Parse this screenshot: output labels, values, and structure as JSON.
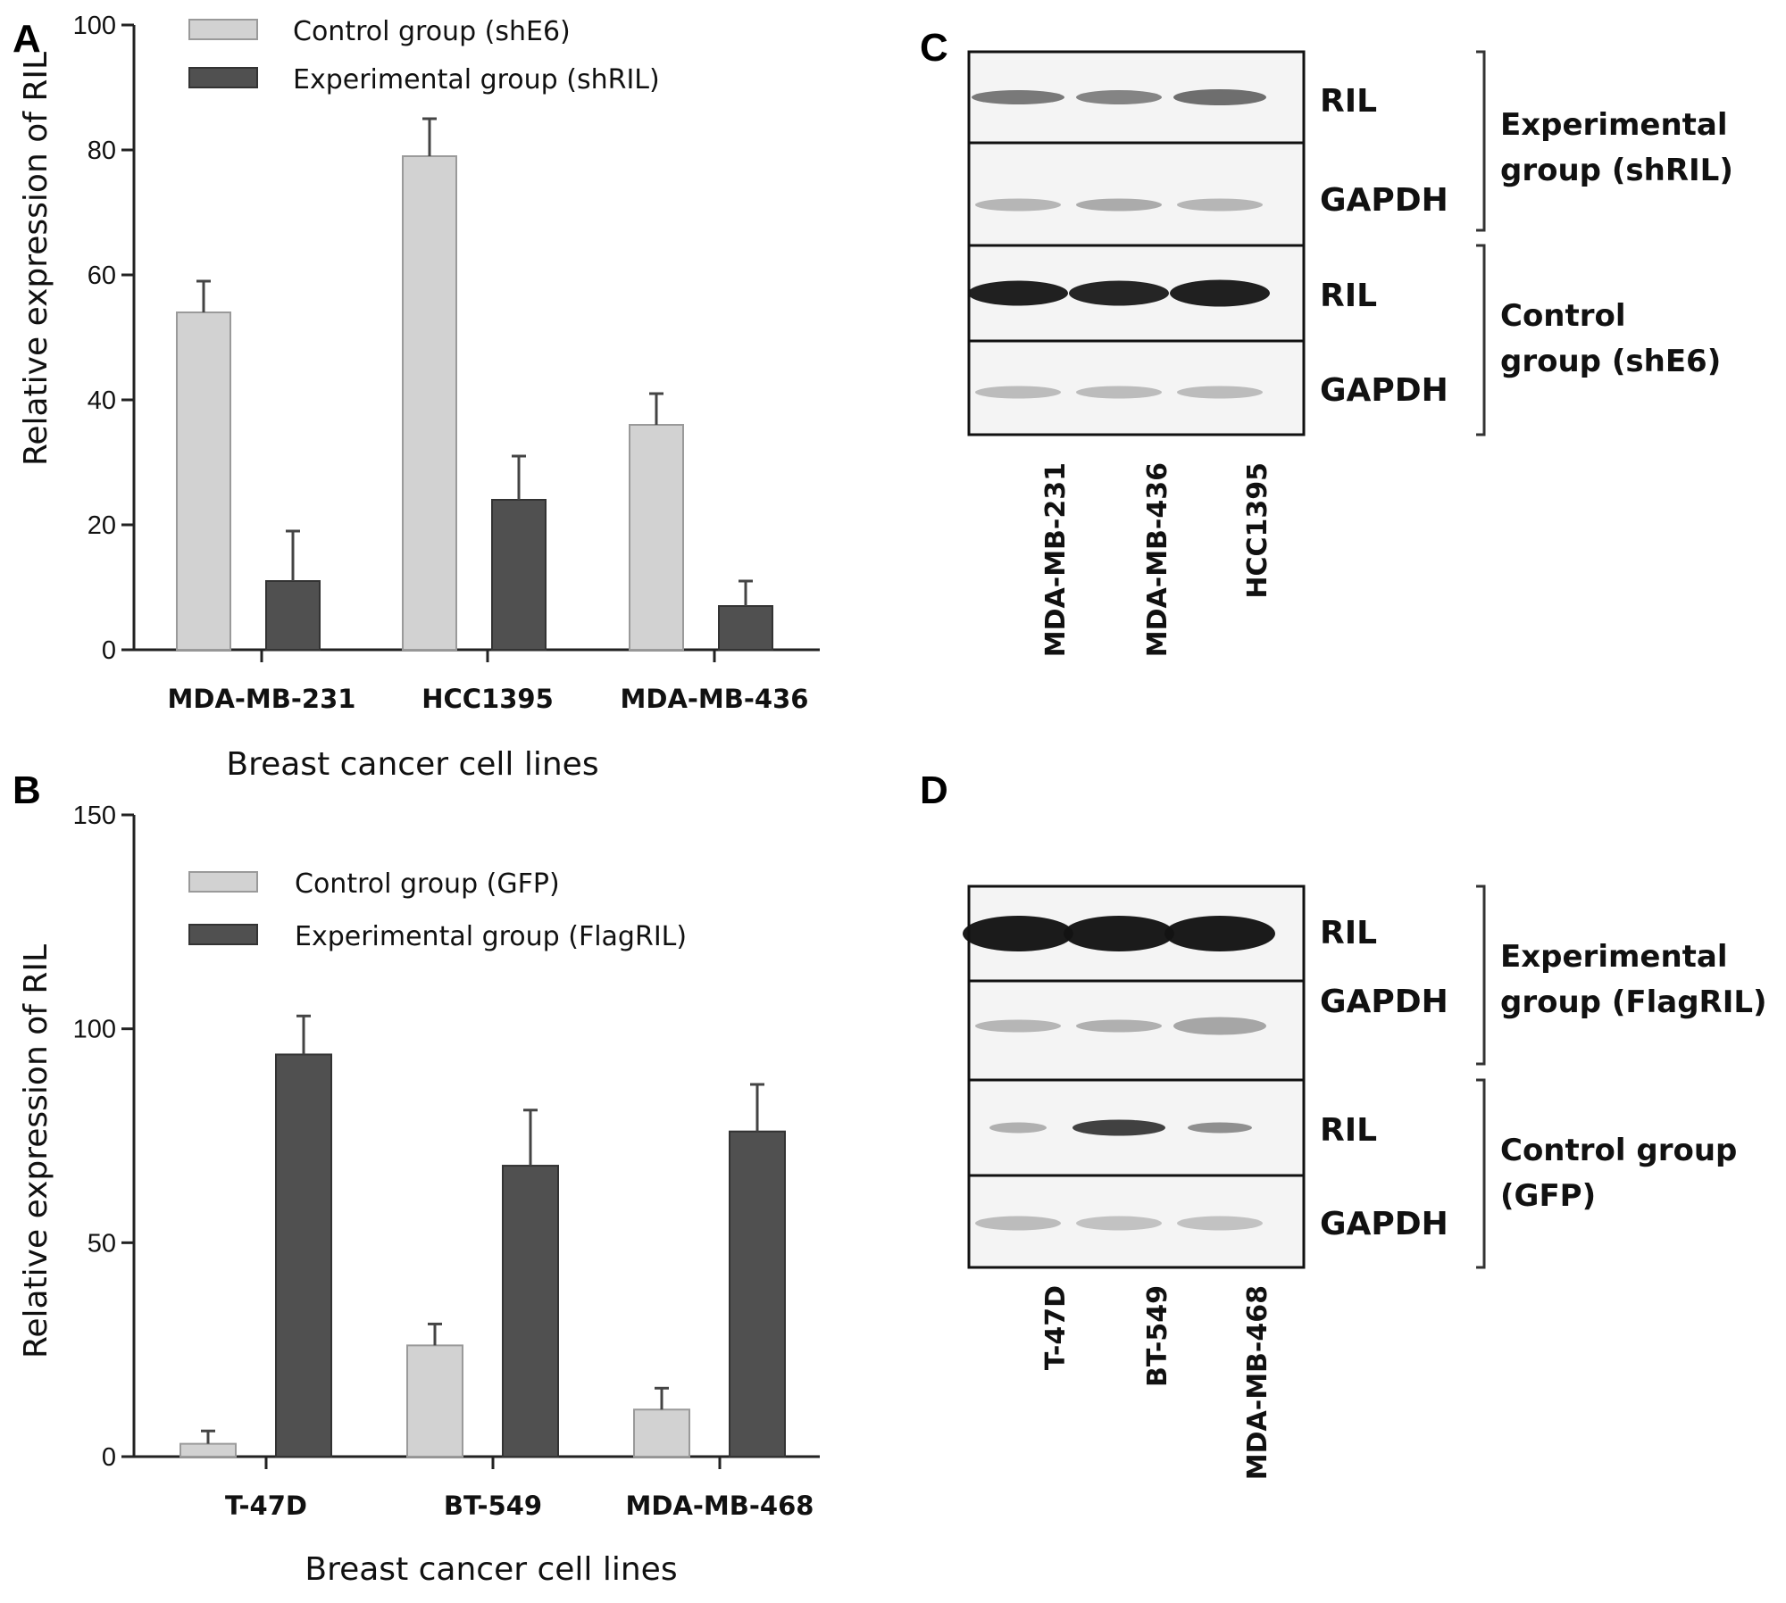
{
  "panels": {
    "a": "A",
    "b": "B",
    "c": "C",
    "d": "D"
  },
  "colors": {
    "control": "#d2d2d2",
    "experimental": "#505050",
    "axis": "#222222"
  },
  "chart_data": [
    {
      "type": "bar",
      "panel": "A",
      "xlabel": "Breast cancer cell lines",
      "ylabel": "Relative expression of RIL",
      "ylim": [
        0,
        100
      ],
      "yticks": [
        0,
        20,
        40,
        60,
        80,
        100
      ],
      "legend_position": "top-left",
      "categories": [
        "MDA-MB-231",
        "HCC1395",
        "MDA-MB-436"
      ],
      "series": [
        {
          "name": "Control group (shE6)",
          "values": [
            54,
            79,
            36
          ],
          "errors": [
            5,
            6,
            5
          ]
        },
        {
          "name": "Experimental group (shRIL)",
          "values": [
            11,
            24,
            7
          ],
          "errors": [
            8,
            7,
            4
          ]
        }
      ]
    },
    {
      "type": "bar",
      "panel": "B",
      "xlabel": "Breast cancer cell lines",
      "ylabel": "Relative expression of RIL",
      "ylim": [
        0,
        150
      ],
      "yticks": [
        0,
        50,
        100,
        150
      ],
      "legend_position": "top-left",
      "categories": [
        "T-47D",
        "BT-549",
        "MDA-MB-468"
      ],
      "series": [
        {
          "name": "Control group (GFP)",
          "values": [
            3,
            26,
            11
          ],
          "errors": [
            3,
            5,
            5
          ]
        },
        {
          "name": "Experimental group (FlagRIL)",
          "values": [
            94,
            68,
            76
          ],
          "errors": [
            9,
            13,
            11
          ]
        }
      ]
    }
  ],
  "blots": {
    "c": {
      "rows": [
        "RIL",
        "GAPDH",
        "RIL",
        "GAPDH"
      ],
      "groups": [
        "Experimental group (shRIL)",
        "Control group (shE6)"
      ],
      "group_lines": [
        [
          "Experimental",
          "group (shRIL)"
        ],
        [
          "Control",
          "group (shE6)"
        ]
      ],
      "lanes": [
        "MDA-MB-231",
        "MDA-MB-436",
        "HCC1395"
      ]
    },
    "d": {
      "rows": [
        "RIL",
        "GAPDH",
        "RIL",
        "GAPDH"
      ],
      "groups": [
        "Experimental group (FlagRIL)",
        "Control group (GFP)"
      ],
      "group_lines": [
        [
          "Experimental",
          "group (FlagRIL)"
        ],
        [
          "Control group",
          "(GFP)"
        ]
      ],
      "lanes": [
        "T-47D",
        "BT-549",
        "MDA-MB-468"
      ]
    }
  }
}
